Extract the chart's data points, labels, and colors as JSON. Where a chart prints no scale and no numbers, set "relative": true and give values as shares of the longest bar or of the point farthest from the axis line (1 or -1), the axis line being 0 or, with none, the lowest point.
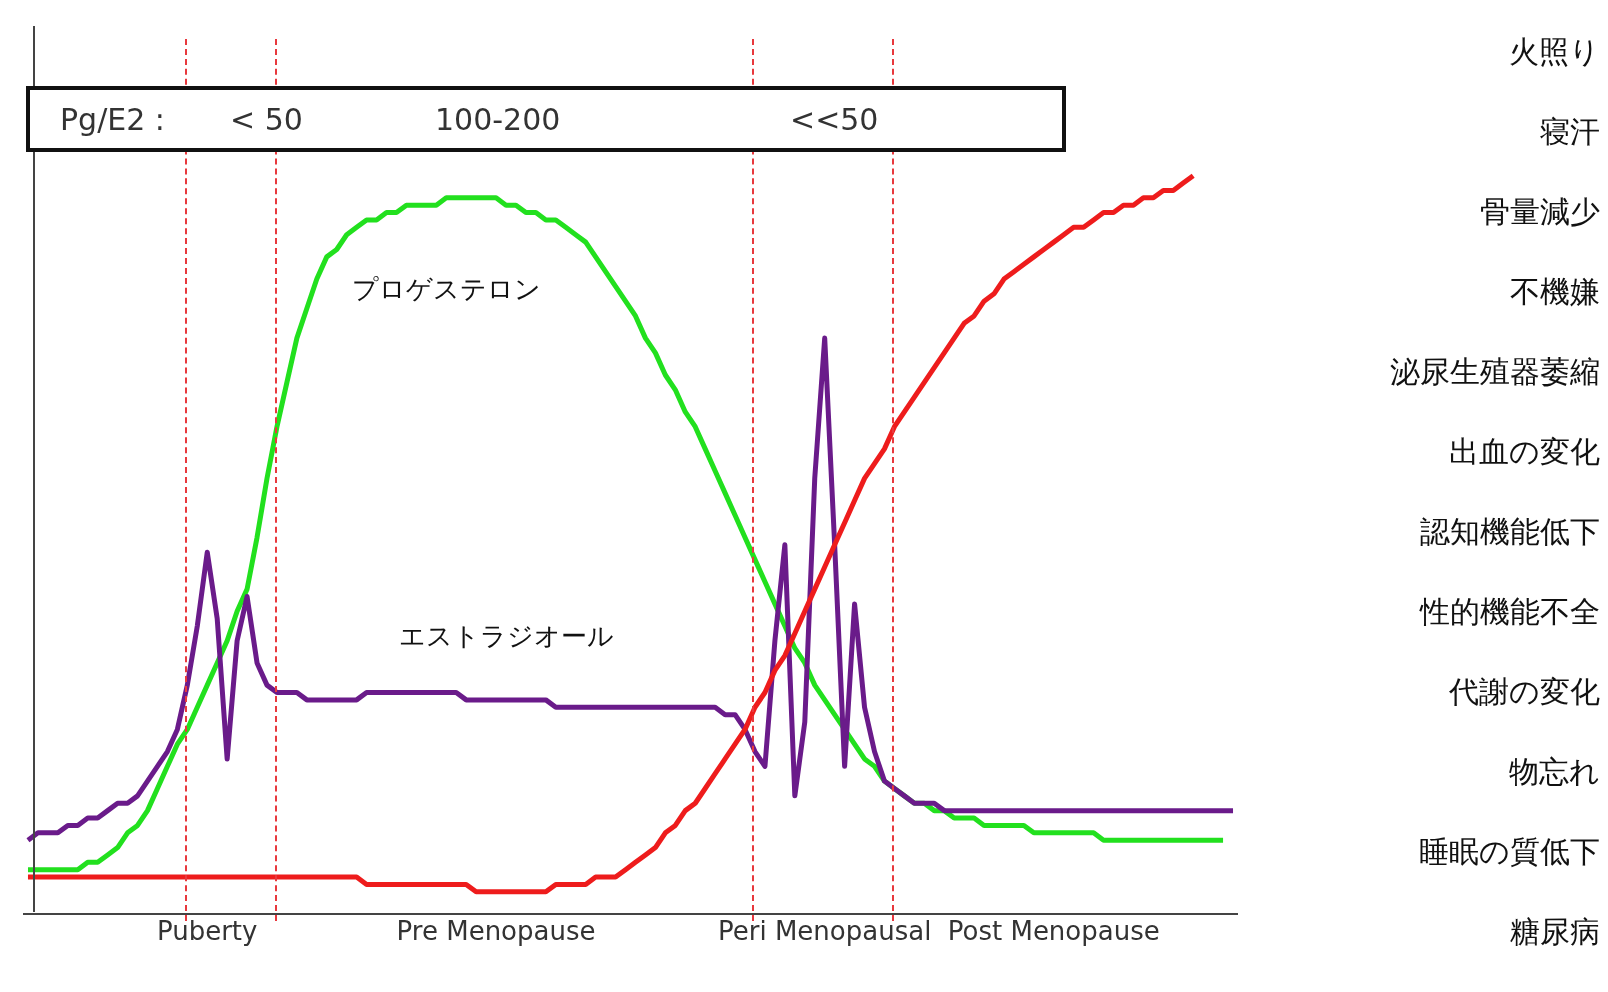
{
  "chart_data": {
    "type": "line",
    "relative": true,
    "categories": [
      null,
      null,
      null,
      null,
      null,
      null,
      null,
      null,
      null,
      null,
      null,
      null,
      null,
      null,
      null,
      null,
      null,
      null,
      "Puberty",
      null,
      null,
      null,
      null,
      null,
      null,
      null,
      null,
      null,
      null,
      null,
      null,
      null,
      null,
      null,
      null,
      null,
      null,
      null,
      null,
      null,
      null,
      null,
      null,
      null,
      null,
      null,
      null,
      "Pre Menopause",
      null,
      null,
      null,
      null,
      null,
      null,
      null,
      null,
      null,
      null,
      null,
      null,
      null,
      null,
      null,
      null,
      null,
      null,
      null,
      null,
      null,
      null,
      null,
      null,
      null,
      null,
      null,
      null,
      null,
      null,
      null,
      null,
      "Peri Menopausal",
      null,
      null,
      null,
      null,
      null,
      null,
      null,
      null,
      null,
      null,
      null,
      null,
      null,
      null,
      null,
      null,
      null,
      null,
      null,
      null,
      null,
      null,
      "Post Menopause",
      null,
      null,
      null,
      null,
      null,
      null,
      null,
      null,
      null,
      null,
      null,
      null,
      null,
      null,
      null,
      null,
      null,
      null
    ],
    "series": [
      {
        "name": "プロゲステロン",
        "color": "#22e01e",
        "values": [
          0.06,
          0.06,
          0.06,
          0.06,
          0.06,
          0.06,
          0.07,
          0.07,
          0.08,
          0.09,
          0.11,
          0.12,
          0.14,
          0.17,
          0.2,
          0.23,
          0.25,
          0.28,
          0.31,
          0.34,
          0.37,
          0.41,
          0.44,
          0.51,
          0.59,
          0.66,
          0.72,
          0.78,
          0.82,
          0.86,
          0.89,
          0.9,
          0.92,
          0.93,
          0.94,
          0.94,
          0.95,
          0.95,
          0.96,
          0.96,
          0.96,
          0.96,
          0.97,
          0.97,
          0.97,
          0.97,
          0.97,
          0.97,
          0.96,
          0.96,
          0.95,
          0.95,
          0.94,
          0.94,
          0.93,
          0.92,
          0.91,
          0.89,
          0.87,
          0.85,
          0.83,
          0.81,
          0.78,
          0.76,
          0.73,
          0.71,
          0.68,
          0.66,
          0.63,
          0.6,
          0.57,
          0.54,
          0.51,
          0.48,
          0.45,
          0.42,
          0.39,
          0.36,
          0.34,
          0.31,
          0.29,
          0.27,
          0.25,
          0.23,
          0.21,
          0.2,
          0.18,
          0.17,
          0.16,
          0.15,
          0.15,
          0.14,
          0.14,
          0.13,
          0.13,
          0.13,
          0.12,
          0.12,
          0.12,
          0.12,
          0.12,
          0.11,
          0.11,
          0.11,
          0.11,
          0.11,
          0.11,
          0.11,
          0.1,
          0.1,
          0.1,
          0.1,
          0.1,
          0.1,
          0.1,
          0.1,
          0.1,
          0.1,
          0.1,
          0.1,
          0.1,
          null
        ]
      },
      {
        "name": "エストラジオール",
        "color": "#6a1b8a",
        "values": [
          0.1,
          0.11,
          0.11,
          0.11,
          0.12,
          0.12,
          0.13,
          0.13,
          0.14,
          0.15,
          0.15,
          0.16,
          0.18,
          0.2,
          0.22,
          0.25,
          0.31,
          0.39,
          0.49,
          0.4,
          0.21,
          0.37,
          0.43,
          0.34,
          0.31,
          0.3,
          0.3,
          0.3,
          0.29,
          0.29,
          0.29,
          0.29,
          0.29,
          0.29,
          0.3,
          0.3,
          0.3,
          0.3,
          0.3,
          0.3,
          0.3,
          0.3,
          0.3,
          0.3,
          0.29,
          0.29,
          0.29,
          0.29,
          0.29,
          0.29,
          0.29,
          0.29,
          0.29,
          0.28,
          0.28,
          0.28,
          0.28,
          0.28,
          0.28,
          0.28,
          0.28,
          0.28,
          0.28,
          0.28,
          0.28,
          0.28,
          0.28,
          0.28,
          0.28,
          0.28,
          0.27,
          0.27,
          0.25,
          0.22,
          0.2,
          0.37,
          0.5,
          0.16,
          0.26,
          0.59,
          0.78,
          0.5,
          0.2,
          0.42,
          0.28,
          0.22,
          0.18,
          0.17,
          0.16,
          0.15,
          0.15,
          0.15,
          0.14,
          0.14,
          0.14,
          0.14,
          0.14,
          0.14,
          0.14,
          0.14,
          0.14,
          0.14,
          0.14,
          0.14,
          0.14,
          0.14,
          0.14,
          0.14,
          0.14,
          0.14,
          0.14,
          0.14,
          0.14,
          0.14,
          0.14,
          0.14,
          0.14,
          0.14,
          0.14,
          0.14,
          0.14,
          0.14
        ]
      },
      {
        "color": "#ee1c1c",
        "values": [
          0.05,
          0.05,
          0.05,
          0.05,
          0.05,
          0.05,
          0.05,
          0.05,
          0.05,
          0.05,
          0.05,
          0.05,
          0.05,
          0.05,
          0.05,
          0.05,
          0.05,
          0.05,
          0.05,
          0.05,
          0.05,
          0.05,
          0.05,
          0.05,
          0.05,
          0.05,
          0.05,
          0.05,
          0.05,
          0.05,
          0.05,
          0.05,
          0.05,
          0.05,
          0.04,
          0.04,
          0.04,
          0.04,
          0.04,
          0.04,
          0.04,
          0.04,
          0.04,
          0.04,
          0.04,
          0.03,
          0.03,
          0.03,
          0.03,
          0.03,
          0.03,
          0.03,
          0.03,
          0.04,
          0.04,
          0.04,
          0.04,
          0.05,
          0.05,
          0.05,
          0.06,
          0.07,
          0.08,
          0.09,
          0.11,
          0.12,
          0.14,
          0.15,
          0.17,
          0.19,
          0.21,
          0.23,
          0.25,
          0.28,
          0.3,
          0.33,
          0.35,
          0.38,
          0.41,
          0.44,
          0.47,
          0.5,
          0.53,
          0.56,
          0.59,
          0.61,
          0.63,
          0.66,
          0.68,
          0.7,
          0.72,
          0.74,
          0.76,
          0.78,
          0.8,
          0.81,
          0.83,
          0.84,
          0.86,
          0.87,
          0.88,
          0.89,
          0.9,
          0.91,
          0.92,
          0.93,
          0.93,
          0.94,
          0.95,
          0.95,
          0.96,
          0.96,
          0.97,
          0.97,
          0.98,
          0.98,
          0.99,
          1,
          null,
          null,
          null,
          null
        ]
      }
    ],
    "annotations": [
      "Pg/E2 :",
      "< 50",
      "100-200",
      "<<50",
      "火照り",
      "寝汗",
      "骨量減少",
      "不機嫌",
      "泌尿生殖器萎縮",
      "出血の変化",
      "認知機能低下",
      "性的機能不全",
      "代謝の変化",
      "物忘れ",
      "睡眠の質低下",
      "糖尿病"
    ],
    "grid": false,
    "legend": false,
    "marker": "none",
    "line_style": "solid"
  }
}
